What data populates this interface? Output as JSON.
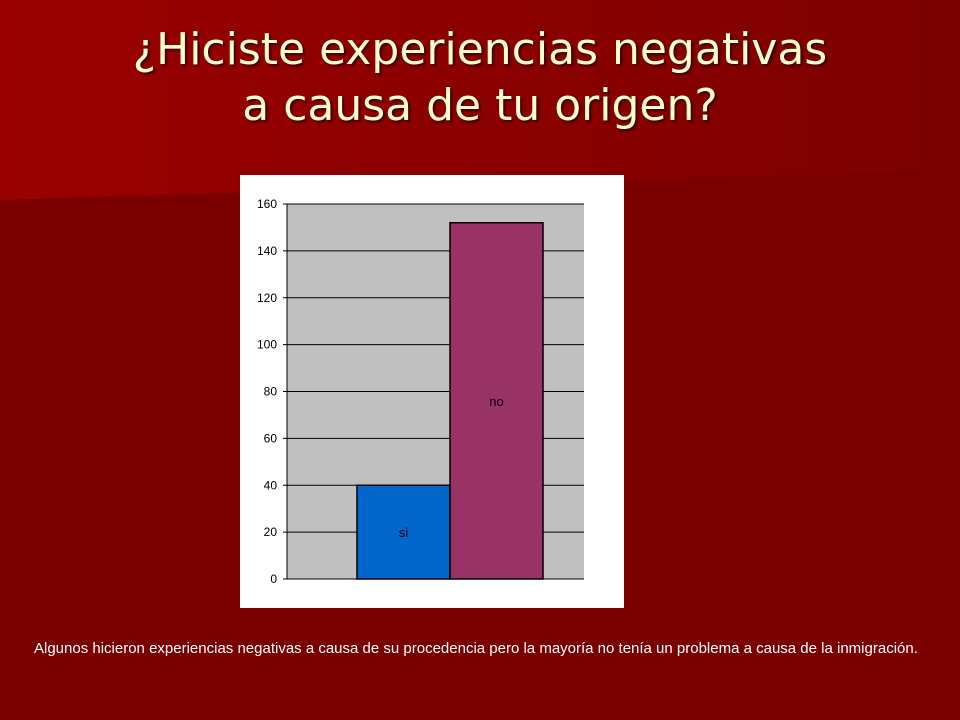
{
  "slide": {
    "title_line1": "¿Hiciste experiencias negativas",
    "title_line2": "a causa de tu origen?",
    "caption": "Algunos hicieron experiencias negativas a causa de su procedencia pero la mayoría no tenía un problema a causa de la inmigración.",
    "colors": {
      "background": "#7a0000",
      "title": "#ffffcc"
    }
  },
  "chart_data": {
    "type": "bar",
    "categories": [
      "si",
      "no"
    ],
    "values": [
      40,
      152
    ],
    "colors": [
      "#0066cc",
      "#993366"
    ],
    "plot_background": "#c0c0c0",
    "ylim": [
      0,
      160
    ],
    "yticks": [
      "0",
      "20",
      "40",
      "60",
      "80",
      "100",
      "120",
      "140",
      "160"
    ],
    "grid": true,
    "legend": "none"
  }
}
